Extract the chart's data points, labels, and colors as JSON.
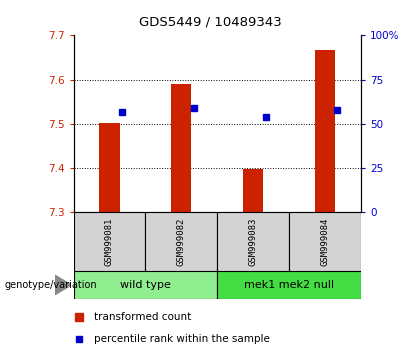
{
  "title": "GDS5449 / 10489343",
  "samples": [
    "GSM999081",
    "GSM999082",
    "GSM999083",
    "GSM999084"
  ],
  "groups": [
    {
      "label": "wild type",
      "indices": [
        0,
        1
      ],
      "color": "#90EE90"
    },
    {
      "label": "mek1 mek2 null",
      "indices": [
        2,
        3
      ],
      "color": "#44DD44"
    }
  ],
  "ylim_left": [
    7.3,
    7.7
  ],
  "yticks_left": [
    7.3,
    7.4,
    7.5,
    7.6,
    7.7
  ],
  "yticks_right": [
    0,
    25,
    50,
    75,
    100
  ],
  "ytick_labels_right": [
    "0",
    "25",
    "50",
    "75",
    "100%"
  ],
  "bar_bottom": 7.3,
  "bar_tops": [
    7.503,
    7.59,
    7.398,
    7.668
  ],
  "percentile_values": [
    7.526,
    7.535,
    7.516,
    7.532
  ],
  "bar_color": "#CC2200",
  "percentile_color": "#0000CC",
  "legend_items": [
    "transformed count",
    "percentile rank within the sample"
  ],
  "genotype_label": "genotype/variation"
}
